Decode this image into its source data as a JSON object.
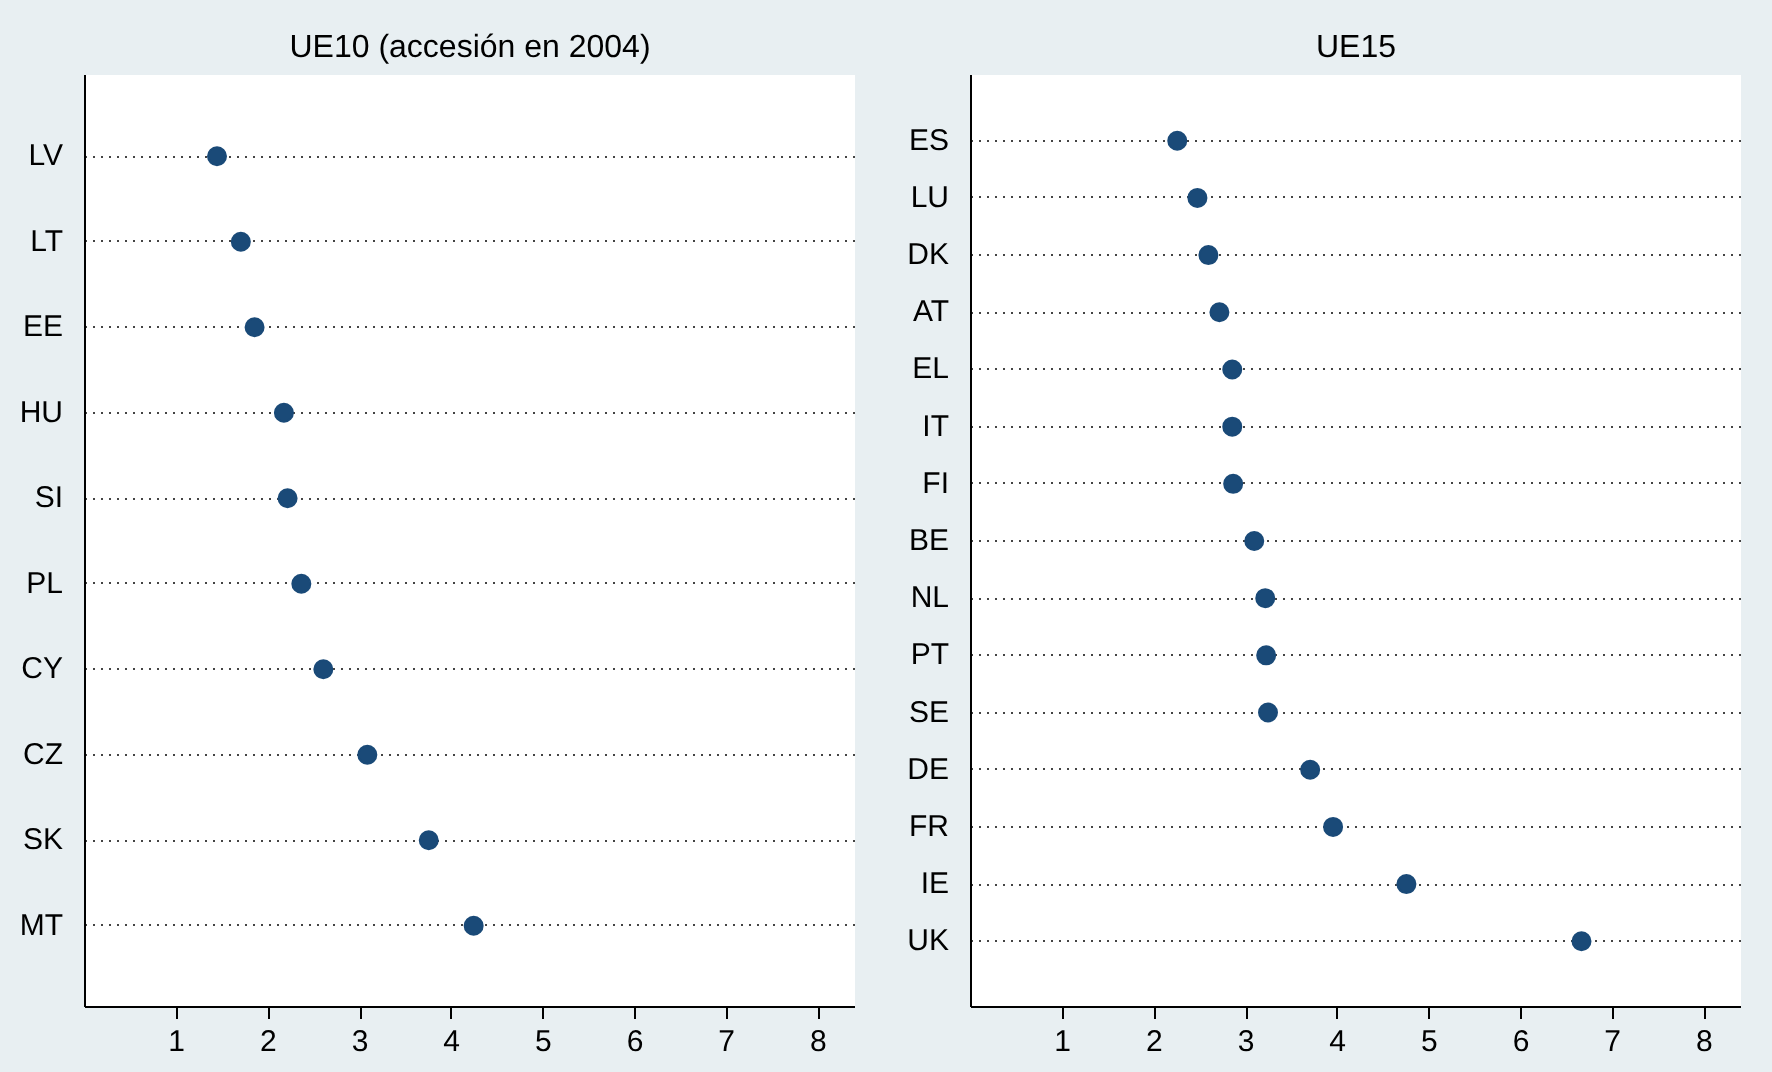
{
  "chart_data": [
    {
      "type": "scatter",
      "title": "UE10 (accesión en 2004)",
      "categories": [
        "LV",
        "LT",
        "EE",
        "HU",
        "SI",
        "PL",
        "CY",
        "CZ",
        "SK",
        "MT"
      ],
      "orientation": "horizontal",
      "series": [
        {
          "color": "#1a4a78",
          "values": [
            1.44,
            1.7,
            1.85,
            2.17,
            2.21,
            2.36,
            2.6,
            3.08,
            3.75,
            4.24
          ]
        }
      ],
      "xlim": [
        0,
        8.4
      ],
      "xticks": [
        1,
        2,
        3,
        4,
        5,
        6,
        7,
        8
      ],
      "grid": "y",
      "marker": "circle"
    },
    {
      "type": "scatter",
      "title": "UE15",
      "categories": [
        "ES",
        "LU",
        "DK",
        "AT",
        "EL",
        "IT",
        "FI",
        "BE",
        "NL",
        "PT",
        "SE",
        "DE",
        "FR",
        "IE",
        "UK"
      ],
      "orientation": "horizontal",
      "series": [
        {
          "color": "#1a4a78",
          "values": [
            2.25,
            2.47,
            2.59,
            2.71,
            2.85,
            2.85,
            2.86,
            3.09,
            3.21,
            3.22,
            3.24,
            3.7,
            3.95,
            4.75,
            6.66
          ]
        }
      ],
      "xlim": [
        0,
        8.4
      ],
      "xticks": [
        1,
        2,
        3,
        4,
        5,
        6,
        7,
        8
      ],
      "grid": "y",
      "marker": "circle"
    }
  ]
}
